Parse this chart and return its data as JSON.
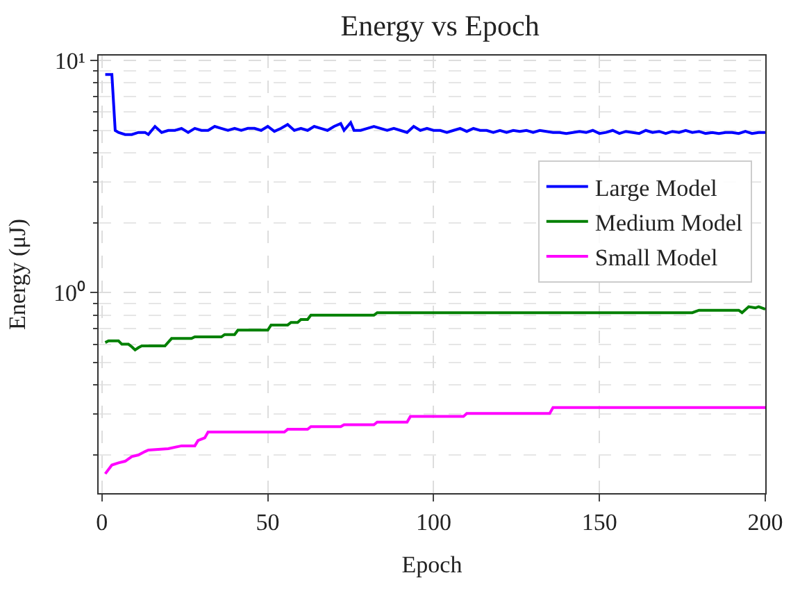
{
  "chart_data": {
    "type": "line",
    "title": "Energy vs Epoch",
    "xlabel": "Epoch",
    "ylabel": "Energy (μJ)",
    "log": "y",
    "grid": true,
    "legend": "right",
    "xlim": [
      -1,
      200
    ],
    "xticks": [
      0,
      50,
      100,
      150,
      200
    ],
    "ylim": [
      0.137,
      10.5
    ],
    "yticks": [
      {
        "value": 1,
        "label": "10⁰"
      },
      {
        "value": 10,
        "label": "10¹"
      }
    ],
    "series": [
      {
        "name": "Large Model",
        "color": "#0000ff",
        "x": [
          1,
          3,
          4,
          5,
          7,
          9,
          11,
          13,
          14,
          16,
          18,
          20,
          22,
          24,
          26,
          28,
          30,
          32,
          34,
          36,
          38,
          40,
          42,
          44,
          46,
          48,
          50,
          52,
          54,
          56,
          58,
          60,
          62,
          64,
          66,
          68,
          70,
          72,
          73,
          75,
          76,
          78,
          80,
          82,
          84,
          86,
          88,
          90,
          92,
          94,
          96,
          98,
          100,
          102,
          104,
          106,
          108,
          110,
          112,
          114,
          116,
          118,
          120,
          122,
          124,
          126,
          128,
          130,
          132,
          134,
          136,
          138,
          140,
          142,
          144,
          146,
          148,
          150,
          152,
          154,
          156,
          158,
          160,
          162,
          164,
          166,
          168,
          170,
          172,
          174,
          176,
          178,
          180,
          182,
          184,
          186,
          188,
          190,
          192,
          194,
          196,
          198,
          200
        ],
        "values": [
          8.7,
          8.7,
          5.0,
          4.9,
          4.8,
          4.8,
          4.9,
          4.9,
          4.8,
          5.2,
          4.9,
          5.0,
          5.0,
          5.1,
          4.9,
          5.1,
          5.0,
          5.0,
          5.2,
          5.1,
          5.0,
          5.1,
          5.0,
          5.1,
          5.1,
          5.0,
          5.2,
          4.95,
          5.1,
          5.3,
          5.0,
          5.1,
          5.0,
          5.2,
          5.1,
          5.0,
          5.2,
          5.35,
          5.0,
          5.4,
          5.0,
          5.0,
          5.1,
          5.2,
          5.1,
          5.0,
          5.1,
          5.0,
          4.9,
          5.2,
          5.0,
          5.1,
          5.0,
          5.0,
          4.9,
          5.0,
          5.1,
          4.95,
          5.1,
          5.0,
          5.0,
          4.9,
          5.0,
          4.9,
          5.0,
          4.95,
          5.0,
          4.9,
          5.0,
          4.95,
          4.9,
          4.9,
          4.85,
          4.9,
          4.95,
          4.9,
          5.0,
          4.85,
          4.9,
          5.0,
          4.85,
          4.95,
          4.9,
          4.85,
          5.0,
          4.9,
          4.95,
          4.85,
          4.95,
          4.9,
          5.0,
          4.9,
          4.95,
          4.85,
          4.9,
          4.85,
          4.9,
          4.9,
          4.85,
          4.95,
          4.85,
          4.9,
          4.9
        ]
      },
      {
        "name": "Medium Model",
        "color": "#008000",
        "x": [
          1,
          2,
          5,
          6,
          8,
          9,
          10,
          11,
          12,
          19,
          21,
          27,
          28,
          36,
          37,
          40,
          41,
          50,
          51,
          56,
          57,
          59,
          60,
          62,
          63,
          82,
          83,
          178,
          180,
          192,
          193,
          195,
          197,
          198,
          200
        ],
        "values": [
          0.61,
          0.62,
          0.62,
          0.6,
          0.6,
          0.585,
          0.567,
          0.58,
          0.59,
          0.59,
          0.635,
          0.635,
          0.645,
          0.645,
          0.66,
          0.66,
          0.69,
          0.69,
          0.726,
          0.726,
          0.745,
          0.745,
          0.767,
          0.767,
          0.8,
          0.8,
          0.82,
          0.82,
          0.84,
          0.84,
          0.82,
          0.87,
          0.86,
          0.87,
          0.85
        ]
      },
      {
        "name": "Small Model",
        "color": "#ff00ff",
        "x": [
          1,
          3,
          5,
          7,
          9,
          11,
          13,
          14,
          20,
          24,
          28,
          29,
          31,
          32,
          55,
          56,
          62,
          63,
          72,
          73,
          82,
          83,
          92,
          93,
          109,
          110,
          135,
          136,
          200
        ],
        "values": [
          0.166,
          0.181,
          0.185,
          0.188,
          0.197,
          0.2,
          0.207,
          0.21,
          0.213,
          0.219,
          0.219,
          0.231,
          0.237,
          0.251,
          0.251,
          0.258,
          0.258,
          0.265,
          0.265,
          0.27,
          0.27,
          0.277,
          0.277,
          0.293,
          0.293,
          0.302,
          0.302,
          0.32,
          0.32
        ]
      }
    ]
  }
}
